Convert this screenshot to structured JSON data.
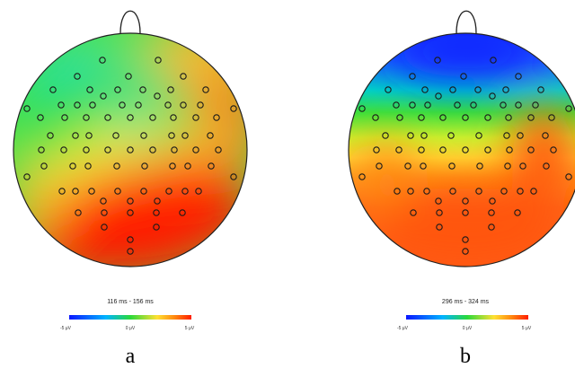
{
  "figure": {
    "panels": [
      {
        "id": "a",
        "letter": "a",
        "window_label": "116 ms - 156 ms",
        "colorbar_ticks": [
          "-5 μV",
          "0 μV",
          "5 μV"
        ],
        "field_pattern": "green-cyan over frontal/left-central region, yellow-orange at right temporal edge, red across lower-right posterior region"
      },
      {
        "id": "b",
        "letter": "b",
        "window_label": "296 ms - 324 ms",
        "colorbar_ticks": [
          "-5 μV",
          "0 μV",
          "5 μV"
        ],
        "field_pattern": "blue at frontal pole, green band across frontal-central region, yellow-orange-red over central and posterior regions"
      }
    ],
    "colors": {
      "negative": "#1a1aff",
      "neutral": "#2bd93b",
      "mid_positive": "#ffe033",
      "positive": "#ff1e00",
      "electrode_outline": "#1a1a1a",
      "head_outline": "#222222"
    },
    "icons": [
      "nose-icon",
      "electrode-marker-icon"
    ]
  }
}
